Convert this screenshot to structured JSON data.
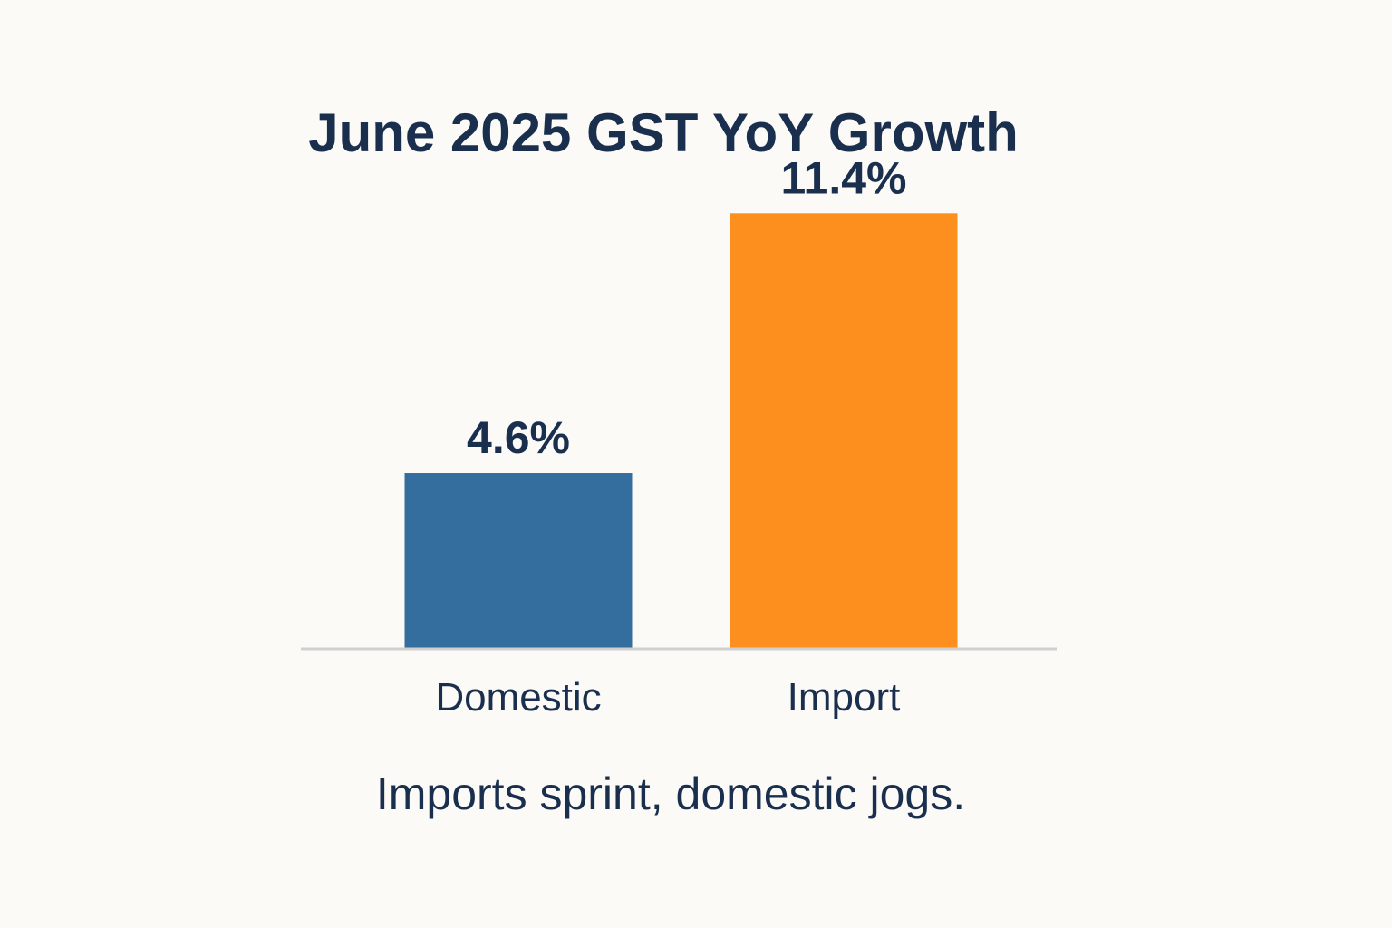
{
  "chart_data": {
    "type": "bar",
    "title": "June 2025 GST YoY Growth",
    "subtitle": "",
    "xlabel": "",
    "ylabel": "",
    "categories": [
      "Domestic",
      "Import"
    ],
    "values": [
      4.6,
      11.4
    ],
    "value_labels": [
      "4.6%",
      "11.4%"
    ],
    "ylim": [
      0,
      12
    ],
    "grid": false,
    "legend": "none",
    "colors": [
      "#336e9f",
      "#fc8f1e"
    ],
    "annotations": [
      "Imports sprint, domestic jogs."
    ]
  },
  "theme": {
    "background": "#fbfaf7",
    "text_color": "#1a2e4d",
    "axis_color": "#d0d0d0"
  }
}
